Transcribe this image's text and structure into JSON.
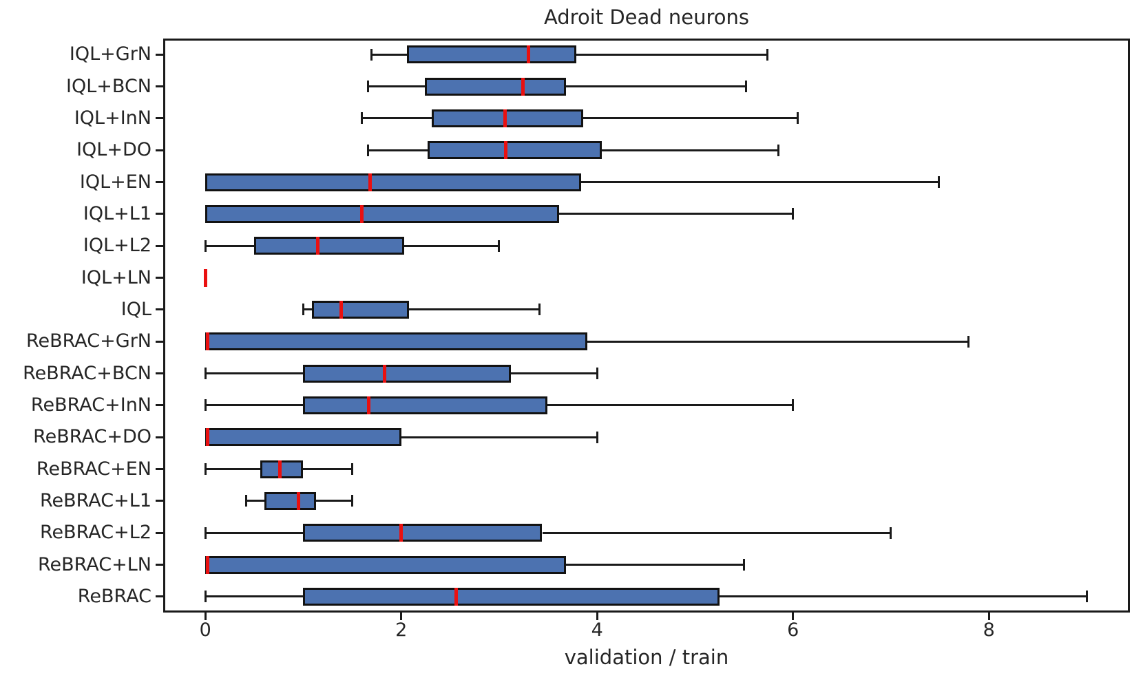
{
  "figure": {
    "title": "Adroit Dead neurons",
    "xlabel": "validation / train"
  },
  "chart_data": {
    "type": "boxplot",
    "orientation": "horizontal",
    "title": "Adroit Dead neurons",
    "xlabel": "validation / train",
    "ylabel": "",
    "grid": false,
    "xlim": [
      -0.43,
      9.44
    ],
    "x_ticks": [
      0,
      2,
      4,
      6,
      8
    ],
    "colors": {
      "box_fill": "#4C72B0",
      "box_edge": "#121212",
      "whisker": "#1a1a1a",
      "median": "#ea1010",
      "text": "#262626"
    },
    "categories": [
      "IQL+GrN",
      "IQL+BCN",
      "IQL+InN",
      "IQL+DO",
      "IQL+EN",
      "IQL+L1",
      "IQL+L2",
      "IQL+LN",
      "IQL",
      "ReBRAC+GrN",
      "ReBRAC+BCN",
      "ReBRAC+InN",
      "ReBRAC+DO",
      "ReBRAC+EN",
      "ReBRAC+L1",
      "ReBRAC+L2",
      "ReBRAC+LN",
      "ReBRAC"
    ],
    "series": [
      {
        "label": "IQL+GrN",
        "whisker_low": 1.7,
        "q1": 2.06,
        "median": 3.3,
        "q3": 3.79,
        "whisker_high": 5.74
      },
      {
        "label": "IQL+BCN",
        "whisker_low": 1.66,
        "q1": 2.24,
        "median": 3.24,
        "q3": 3.68,
        "whisker_high": 5.52
      },
      {
        "label": "IQL+InN",
        "whisker_low": 1.6,
        "q1": 2.31,
        "median": 3.06,
        "q3": 3.86,
        "whisker_high": 6.05
      },
      {
        "label": "IQL+DO",
        "whisker_low": 1.66,
        "q1": 2.27,
        "median": 3.07,
        "q3": 4.05,
        "whisker_high": 5.85
      },
      {
        "label": "IQL+EN",
        "whisker_low": 0.0,
        "q1": 0.0,
        "median": 1.68,
        "q3": 3.84,
        "whisker_high": 7.49
      },
      {
        "label": "IQL+L1",
        "whisker_low": 0.0,
        "q1": 0.0,
        "median": 1.6,
        "q3": 3.61,
        "whisker_high": 6.0
      },
      {
        "label": "IQL+L2",
        "whisker_low": 0.0,
        "q1": 0.5,
        "median": 1.15,
        "q3": 2.03,
        "whisker_high": 3.0
      },
      {
        "label": "IQL+LN",
        "whisker_low": 0.0,
        "q1": 0.0,
        "median": 0.0,
        "q3": 0.0,
        "whisker_high": 0.0
      },
      {
        "label": "IQL",
        "whisker_low": 1.0,
        "q1": 1.09,
        "median": 1.39,
        "q3": 2.08,
        "whisker_high": 3.41
      },
      {
        "label": "ReBRAC+GrN",
        "whisker_low": 0.0,
        "q1": 0.0,
        "median": 0.02,
        "q3": 3.9,
        "whisker_high": 7.79
      },
      {
        "label": "ReBRAC+BCN",
        "whisker_low": 0.0,
        "q1": 1.0,
        "median": 1.83,
        "q3": 3.12,
        "whisker_high": 4.0
      },
      {
        "label": "ReBRAC+InN",
        "whisker_low": 0.0,
        "q1": 1.0,
        "median": 1.67,
        "q3": 3.49,
        "whisker_high": 6.0
      },
      {
        "label": "ReBRAC+DO",
        "whisker_low": 0.0,
        "q1": 0.0,
        "median": 0.02,
        "q3": 2.0,
        "whisker_high": 4.0
      },
      {
        "label": "ReBRAC+EN",
        "whisker_low": 0.0,
        "q1": 0.56,
        "median": 0.76,
        "q3": 1.0,
        "whisker_high": 1.5
      },
      {
        "label": "ReBRAC+L1",
        "whisker_low": 0.42,
        "q1": 0.6,
        "median": 0.95,
        "q3": 1.13,
        "whisker_high": 1.5
      },
      {
        "label": "ReBRAC+L2",
        "whisker_low": 0.0,
        "q1": 1.0,
        "median": 2.0,
        "q3": 3.44,
        "whisker_high": 7.0
      },
      {
        "label": "ReBRAC+LN",
        "whisker_low": 0.0,
        "q1": 0.0,
        "median": 0.02,
        "q3": 3.68,
        "whisker_high": 5.5
      },
      {
        "label": "ReBRAC",
        "whisker_low": 0.0,
        "q1": 1.0,
        "median": 2.56,
        "q3": 5.25,
        "whisker_high": 9.0
      }
    ]
  }
}
